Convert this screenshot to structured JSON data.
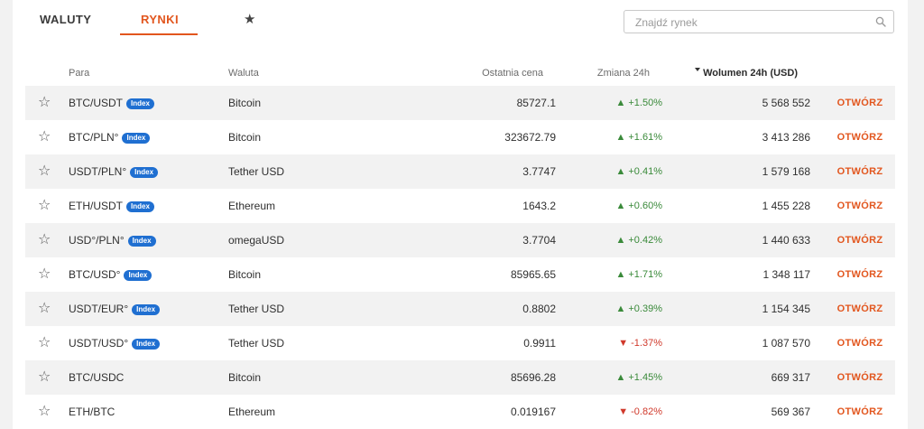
{
  "tabs": {
    "waluty": "WALUTY",
    "rynki": "RYNKI"
  },
  "search": {
    "placeholder": "Znajdź rynek",
    "value": ""
  },
  "colors": {
    "accent": "#e2561e",
    "badge": "#1f6fd1",
    "up": "#3a8a3a",
    "down": "#d0392b"
  },
  "columns": {
    "pair": "Para",
    "currency": "Waluta",
    "last_price": "Ostatnia cena",
    "change": "Zmiana 24h",
    "volume": "Wolumen 24h (USD)"
  },
  "action_label": "OTWÓRZ",
  "badge_label": "Index",
  "rows": [
    {
      "pair": "BTC/USDT",
      "index": true,
      "currency": "Bitcoin",
      "price": "85727.1",
      "change": "▲ +1.50%",
      "dir": "up",
      "volume": "5 568 552"
    },
    {
      "pair": "BTC/PLN°",
      "index": true,
      "currency": "Bitcoin",
      "price": "323672.79",
      "change": "▲ +1.61%",
      "dir": "up",
      "volume": "3 413 286"
    },
    {
      "pair": "USDT/PLN°",
      "index": true,
      "currency": "Tether USD",
      "price": "3.7747",
      "change": "▲ +0.41%",
      "dir": "up",
      "volume": "1 579 168"
    },
    {
      "pair": "ETH/USDT",
      "index": true,
      "currency": "Ethereum",
      "price": "1643.2",
      "change": "▲ +0.60%",
      "dir": "up",
      "volume": "1 455 228"
    },
    {
      "pair": "USD°/PLN°",
      "index": true,
      "currency": "omegaUSD",
      "price": "3.7704",
      "change": "▲ +0.42%",
      "dir": "up",
      "volume": "1 440 633"
    },
    {
      "pair": "BTC/USD°",
      "index": true,
      "currency": "Bitcoin",
      "price": "85965.65",
      "change": "▲ +1.71%",
      "dir": "up",
      "volume": "1 348 117"
    },
    {
      "pair": "USDT/EUR°",
      "index": true,
      "currency": "Tether USD",
      "price": "0.8802",
      "change": "▲ +0.39%",
      "dir": "up",
      "volume": "1 154 345"
    },
    {
      "pair": "USDT/USD°",
      "index": true,
      "currency": "Tether USD",
      "price": "0.9911",
      "change": "▼ -1.37%",
      "dir": "down",
      "volume": "1 087 570"
    },
    {
      "pair": "BTC/USDC",
      "index": false,
      "currency": "Bitcoin",
      "price": "85696.28",
      "change": "▲ +1.45%",
      "dir": "up",
      "volume": "669 317"
    },
    {
      "pair": "ETH/BTC",
      "index": false,
      "currency": "Ethereum",
      "price": "0.019167",
      "change": "▼ -0.82%",
      "dir": "down",
      "volume": "569 367"
    }
  ]
}
